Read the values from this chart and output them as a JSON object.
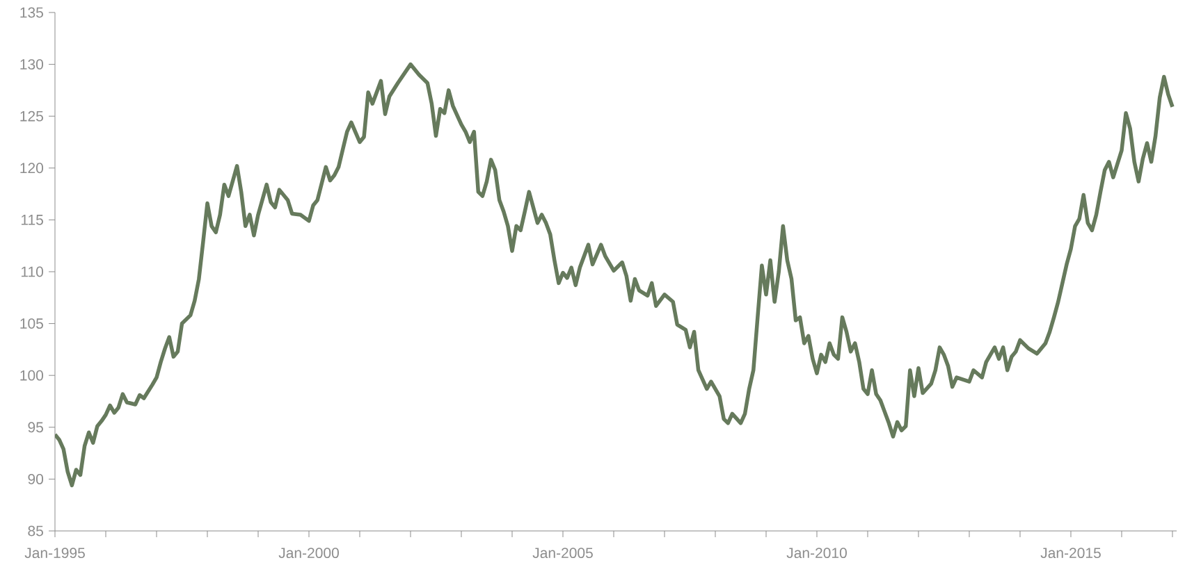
{
  "chart_data": {
    "type": "line",
    "color": "#667a5c",
    "x": [
      "1995-01",
      "1995-02",
      "1995-03",
      "1995-04",
      "1995-05",
      "1995-06",
      "1995-07",
      "1995-08",
      "1995-09",
      "1995-10",
      "1995-11",
      "1995-12",
      "1996-01",
      "1996-02",
      "1996-03",
      "1996-04",
      "1996-05",
      "1996-06",
      "1996-08",
      "1996-09",
      "1996-10",
      "1996-12",
      "1997-01",
      "1997-02",
      "1997-03",
      "1997-04",
      "1997-05",
      "1997-06",
      "1997-07",
      "1997-09",
      "1997-10",
      "1997-11",
      "1997-12",
      "1998-01",
      "1998-02",
      "1998-03",
      "1998-04",
      "1998-05",
      "1998-06",
      "1998-08",
      "1998-09",
      "1998-10",
      "1998-11",
      "1998-12",
      "1999-01",
      "1999-03",
      "1999-04",
      "1999-05",
      "1999-06",
      "1999-08",
      "1999-09",
      "1999-11",
      "2000-01",
      "2000-02",
      "2000-03",
      "2000-05",
      "2000-06",
      "2000-07",
      "2000-08",
      "2000-09",
      "2000-10",
      "2000-11",
      "2001-01",
      "2001-02",
      "2001-03",
      "2001-04",
      "2001-06",
      "2001-07",
      "2001-08",
      "2001-10",
      "2002-01",
      "2002-03",
      "2002-05",
      "2002-06",
      "2002-07",
      "2002-08",
      "2002-09",
      "2002-10",
      "2002-11",
      "2003-01",
      "2003-02",
      "2003-03",
      "2003-04",
      "2003-05",
      "2003-06",
      "2003-07",
      "2003-08",
      "2003-09",
      "2003-10",
      "2003-11",
      "2003-12",
      "2004-01",
      "2004-02",
      "2004-03",
      "2004-04",
      "2004-05",
      "2004-06",
      "2004-07",
      "2004-08",
      "2004-09",
      "2004-10",
      "2004-11",
      "2004-12",
      "2005-01",
      "2005-02",
      "2005-03",
      "2005-04",
      "2005-05",
      "2005-06",
      "2005-07",
      "2005-08",
      "2005-10",
      "2005-11",
      "2006-01",
      "2006-03",
      "2006-04",
      "2006-05",
      "2006-06",
      "2006-07",
      "2006-09",
      "2006-10",
      "2006-11",
      "2007-01",
      "2007-03",
      "2007-04",
      "2007-06",
      "2007-07",
      "2007-08",
      "2007-09",
      "2007-11",
      "2007-12",
      "2008-02",
      "2008-03",
      "2008-04",
      "2008-05",
      "2008-07",
      "2008-08",
      "2008-09",
      "2008-10",
      "2008-11",
      "2008-12",
      "2009-01",
      "2009-02",
      "2009-03",
      "2009-04",
      "2009-05",
      "2009-06",
      "2009-07",
      "2009-08",
      "2009-09",
      "2009-10",
      "2009-11",
      "2009-12",
      "2010-01",
      "2010-02",
      "2010-03",
      "2010-04",
      "2010-05",
      "2010-06",
      "2010-07",
      "2010-08",
      "2010-09",
      "2010-10",
      "2010-11",
      "2010-12",
      "2011-01",
      "2011-02",
      "2011-03",
      "2011-04",
      "2011-05",
      "2011-06",
      "2011-07",
      "2011-08",
      "2011-09",
      "2011-10",
      "2011-11",
      "2011-12",
      "2012-01",
      "2012-02",
      "2012-04",
      "2012-05",
      "2012-06",
      "2012-07",
      "2012-08",
      "2012-09",
      "2012-10",
      "2013-01",
      "2013-02",
      "2013-04",
      "2013-05",
      "2013-07",
      "2013-08",
      "2013-09",
      "2013-10",
      "2013-11",
      "2013-12",
      "2014-01",
      "2014-03",
      "2014-05",
      "2014-07",
      "2014-08",
      "2014-09",
      "2014-10",
      "2014-12",
      "2015-01",
      "2015-02",
      "2015-03",
      "2015-04",
      "2015-05",
      "2015-06",
      "2015-07",
      "2015-08",
      "2015-09",
      "2015-10",
      "2015-11",
      "2016-01",
      "2016-02",
      "2016-03",
      "2016-04",
      "2016-05",
      "2016-06",
      "2016-07",
      "2016-08",
      "2016-09",
      "2016-10",
      "2016-11",
      "2016-12",
      "2017-01"
    ],
    "values": [
      94.3,
      93.8,
      92.9,
      90.7,
      89.4,
      90.9,
      90.4,
      93.2,
      94.5,
      93.5,
      95.1,
      95.6,
      96.2,
      97.1,
      96.4,
      96.9,
      98.2,
      97.4,
      97.2,
      98.1,
      97.8,
      99.1,
      99.8,
      101.3,
      102.6,
      103.7,
      101.8,
      102.3,
      105.0,
      105.8,
      107.2,
      109.3,
      112.9,
      116.6,
      114.4,
      113.8,
      115.5,
      118.4,
      117.3,
      120.2,
      117.7,
      114.4,
      115.5,
      113.5,
      115.5,
      118.4,
      116.7,
      116.2,
      117.9,
      116.9,
      115.6,
      115.5,
      114.9,
      116.4,
      116.9,
      120.1,
      118.8,
      119.3,
      120.1,
      121.8,
      123.5,
      124.4,
      122.5,
      123.0,
      127.3,
      126.2,
      128.4,
      125.2,
      126.9,
      128.2,
      130.0,
      129.0,
      128.2,
      126.2,
      123.1,
      125.7,
      125.3,
      127.5,
      126.0,
      124.2,
      123.5,
      122.5,
      123.5,
      117.7,
      117.3,
      118.7,
      120.8,
      119.8,
      116.9,
      115.8,
      114.4,
      112.0,
      114.4,
      114.0,
      115.8,
      117.7,
      116.2,
      114.7,
      115.5,
      114.7,
      113.6,
      111.1,
      108.9,
      109.9,
      109.4,
      110.4,
      108.7,
      110.4,
      111.5,
      112.6,
      110.7,
      112.6,
      111.5,
      110.1,
      110.9,
      109.6,
      107.2,
      109.3,
      108.2,
      107.7,
      108.9,
      106.7,
      107.8,
      107.1,
      104.9,
      104.4,
      102.7,
      104.2,
      100.5,
      98.7,
      99.4,
      98.0,
      95.8,
      95.4,
      96.3,
      95.4,
      96.3,
      98.7,
      100.5,
      105.6,
      110.6,
      107.8,
      111.1,
      107.1,
      110.0,
      114.4,
      111.1,
      109.3,
      105.3,
      105.6,
      103.1,
      103.8,
      101.6,
      100.2,
      102.0,
      101.3,
      103.1,
      102.0,
      101.6,
      105.6,
      104.2,
      102.3,
      103.1,
      101.3,
      98.7,
      98.2,
      100.5,
      98.2,
      97.6,
      96.5,
      95.4,
      94.1,
      95.5,
      94.7,
      95.1,
      100.5,
      98.0,
      100.7,
      98.3,
      99.2,
      100.5,
      102.7,
      102.0,
      100.9,
      98.9,
      99.8,
      99.4,
      100.5,
      99.8,
      101.3,
      102.7,
      101.6,
      102.7,
      100.5,
      101.8,
      102.3,
      103.4,
      102.6,
      102.1,
      103.1,
      104.2,
      105.6,
      107.1,
      110.7,
      112.2,
      114.4,
      115.1,
      117.4,
      114.7,
      114.0,
      115.5,
      117.7,
      119.8,
      120.6,
      119.1,
      121.7,
      125.3,
      123.8,
      120.6,
      118.7,
      120.9,
      122.4,
      120.6,
      123.1,
      126.8,
      128.8,
      127.1,
      125.9
    ],
    "xlim": [
      "1995-01",
      "2017-02"
    ],
    "xticks": [
      {
        "value": "1995-01",
        "label": "Jan-1995"
      },
      {
        "value": "1996-01",
        "label": null
      },
      {
        "value": "1997-01",
        "label": null
      },
      {
        "value": "1998-01",
        "label": null
      },
      {
        "value": "1999-01",
        "label": null
      },
      {
        "value": "2000-01",
        "label": "Jan-2000"
      },
      {
        "value": "2001-01",
        "label": null
      },
      {
        "value": "2002-01",
        "label": null
      },
      {
        "value": "2003-01",
        "label": null
      },
      {
        "value": "2004-01",
        "label": null
      },
      {
        "value": "2005-01",
        "label": "Jan-2005"
      },
      {
        "value": "2006-01",
        "label": null
      },
      {
        "value": "2007-01",
        "label": null
      },
      {
        "value": "2008-01",
        "label": null
      },
      {
        "value": "2009-01",
        "label": null
      },
      {
        "value": "2010-01",
        "label": "Jan-2010"
      },
      {
        "value": "2011-01",
        "label": null
      },
      {
        "value": "2012-01",
        "label": null
      },
      {
        "value": "2013-01",
        "label": null
      },
      {
        "value": "2014-01",
        "label": null
      },
      {
        "value": "2015-01",
        "label": "Jan-2015"
      },
      {
        "value": "2016-01",
        "label": null
      },
      {
        "value": "2017-01",
        "label": null
      }
    ],
    "ylim": [
      85,
      135
    ],
    "yticks": [
      85,
      90,
      95,
      100,
      105,
      110,
      115,
      120,
      125,
      130,
      135
    ],
    "grid": false
  }
}
